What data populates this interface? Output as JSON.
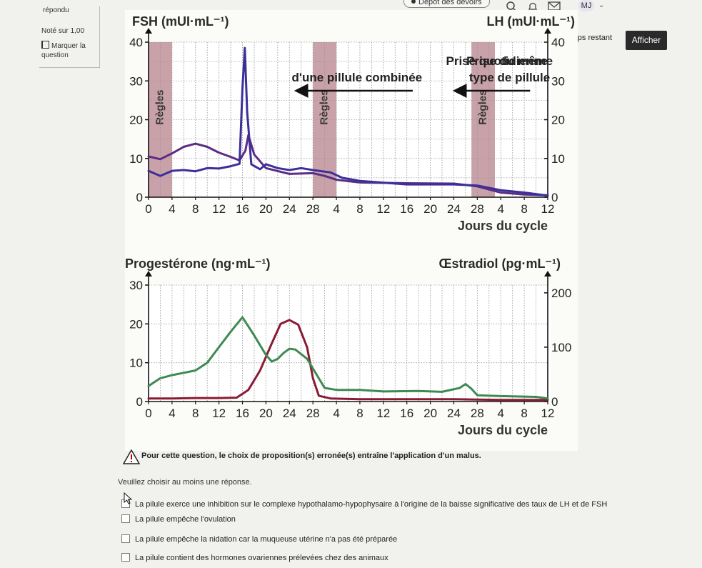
{
  "topbar": {
    "depot_label": "Dépôt des devoirs",
    "avatar_initials": "MJ",
    "icons": [
      "search-icon",
      "bell-icon",
      "mail-icon",
      "chevron-down-icon"
    ]
  },
  "question_info": {
    "answered": "répondu",
    "grade": "Noté sur 1,00",
    "flag_line1": "Marquer la",
    "flag_line2": "question"
  },
  "timer": {
    "label": "Temps restant"
  },
  "afficher_button": {
    "label": "Afficher"
  },
  "chart_data": [
    {
      "type": "line",
      "left_axis_label": "FSH (mUI·mL⁻¹)",
      "right_axis_label": "LH (mUI·mL⁻¹)",
      "left_ticks": [
        "40",
        "30",
        "20",
        "10",
        "0"
      ],
      "right_ticks": [
        "40",
        "30",
        "20",
        "10",
        "0"
      ],
      "x_ticks": [
        "0",
        "4",
        "8",
        "12",
        "16",
        "20",
        "24",
        "28",
        "4",
        "8",
        "12",
        "16",
        "20",
        "24",
        "28",
        "4",
        "8",
        "12"
      ],
      "xlabel": "Jours du cycle",
      "x_domain": [
        0,
        68
      ],
      "ylim": [
        0,
        40
      ],
      "annotations": {
        "pill_phase": "Prise quotidienne d'une pillule combinée",
        "same_pill": "Prise du même type de pillule",
        "menses": "Règles"
      },
      "menses_bands": [
        [
          0,
          4
        ],
        [
          28,
          32
        ],
        [
          55,
          59
        ]
      ],
      "series": [
        {
          "name": "FSH",
          "color": "#5b2d86",
          "points": [
            [
              0,
              10.5
            ],
            [
              2,
              9.8
            ],
            [
              4,
              11.3
            ],
            [
              6,
              13
            ],
            [
              8,
              13.8
            ],
            [
              10,
              13
            ],
            [
              12,
              11.5
            ],
            [
              14,
              10.4
            ],
            [
              15.5,
              9.5
            ],
            [
              16.5,
              12
            ],
            [
              17,
              16
            ],
            [
              18,
              11
            ],
            [
              20,
              7.5
            ],
            [
              24,
              6
            ],
            [
              28,
              6.2
            ],
            [
              30,
              5.5
            ],
            [
              32,
              4.5
            ],
            [
              36,
              3.8
            ],
            [
              44,
              3.6
            ],
            [
              52,
              3.5
            ],
            [
              56,
              2.8
            ],
            [
              60,
              1.2
            ],
            [
              64,
              0.7
            ],
            [
              68,
              0.5
            ]
          ]
        },
        {
          "name": "LH",
          "color": "#3b2f9a",
          "points": [
            [
              0,
              6.8
            ],
            [
              2,
              5.5
            ],
            [
              4,
              6.8
            ],
            [
              6,
              7
            ],
            [
              8,
              6.7
            ],
            [
              10,
              7.5
            ],
            [
              12,
              7.4
            ],
            [
              14,
              8
            ],
            [
              15.5,
              8.6
            ],
            [
              16,
              28
            ],
            [
              16.4,
              38.5
            ],
            [
              16.8,
              22
            ],
            [
              17.5,
              8.5
            ],
            [
              19,
              7.2
            ],
            [
              20,
              8.5
            ],
            [
              22,
              7.5
            ],
            [
              24,
              7
            ],
            [
              26,
              7.5
            ],
            [
              28,
              7
            ],
            [
              31,
              6.4
            ],
            [
              33,
              5
            ],
            [
              36,
              4.2
            ],
            [
              44,
              3.3
            ],
            [
              52,
              3.3
            ],
            [
              56,
              3
            ],
            [
              60,
              1.8
            ],
            [
              64,
              1.2
            ],
            [
              68,
              0.4
            ]
          ]
        }
      ]
    },
    {
      "type": "line",
      "left_axis_label": "Progestérone (ng·mL⁻¹)",
      "right_axis_label": "Œstradiol (pg·mL⁻¹)",
      "left_ticks": [
        "30",
        "20",
        "10",
        "0"
      ],
      "right_ticks": [
        "200",
        "100",
        "0"
      ],
      "x_ticks": [
        "0",
        "4",
        "8",
        "12",
        "16",
        "20",
        "24",
        "28",
        "4",
        "8",
        "12",
        "16",
        "20",
        "24",
        "28",
        "4",
        "8",
        "12"
      ],
      "xlabel": "Jours du cycle",
      "x_domain": [
        0,
        68
      ],
      "ylim": [
        0,
        30
      ],
      "series": [
        {
          "name": "Progestérone",
          "color": "#8a1a34",
          "points": [
            [
              0,
              0.8
            ],
            [
              4,
              0.8
            ],
            [
              8,
              0.9
            ],
            [
              12,
              0.9
            ],
            [
              15,
              1
            ],
            [
              17,
              3
            ],
            [
              19,
              8
            ],
            [
              21,
              15
            ],
            [
              22.5,
              20
            ],
            [
              24,
              21
            ],
            [
              25.5,
              19.8
            ],
            [
              27,
              14
            ],
            [
              28,
              6
            ],
            [
              29,
              1.5
            ],
            [
              31,
              0.8
            ],
            [
              36,
              0.6
            ],
            [
              52,
              0.6
            ],
            [
              60,
              0.4
            ],
            [
              68,
              0.4
            ]
          ]
        },
        {
          "name": "Œstradiol",
          "color": "#3d8a52",
          "points": [
            [
              0,
              4
            ],
            [
              2,
              6
            ],
            [
              4,
              6.8
            ],
            [
              8,
              8
            ],
            [
              10,
              10
            ],
            [
              12,
              14
            ],
            [
              14,
              18
            ],
            [
              16,
              21.7
            ],
            [
              18,
              17
            ],
            [
              20,
              12
            ],
            [
              21,
              10.3
            ],
            [
              22,
              11
            ],
            [
              23,
              12.5
            ],
            [
              24,
              13.6
            ],
            [
              25,
              13.4
            ],
            [
              27,
              11
            ],
            [
              28,
              8.5
            ],
            [
              30,
              3.5
            ],
            [
              32,
              3
            ],
            [
              36,
              3
            ],
            [
              40,
              2.6
            ],
            [
              46,
              2.7
            ],
            [
              50,
              2.5
            ],
            [
              53,
              3.5
            ],
            [
              54,
              4.5
            ],
            [
              55,
              3.3
            ],
            [
              56,
              1.6
            ],
            [
              60,
              1.4
            ],
            [
              66,
              1.2
            ],
            [
              68,
              0.8
            ]
          ]
        }
      ]
    }
  ],
  "warning": {
    "text": "Pour cette question, le choix de proposition(s) erronée(s) entraîne l'application d'un malus."
  },
  "instruction": "Veuillez choisir au moins une réponse.",
  "options": [
    {
      "text": "La pilule exerce une inhibition sur le complexe hypothalamo-hypophysaire à l'origine de la baisse significative des taux de LH et de FSH"
    },
    {
      "text": "La pilule empêche l'ovulation"
    },
    {
      "text": "La pilule empêche la nidation car la muqueuse utérine n'a pas été préparée"
    },
    {
      "text": "La pilule contient des hormones ovariennes prélevées chez des animaux"
    }
  ]
}
